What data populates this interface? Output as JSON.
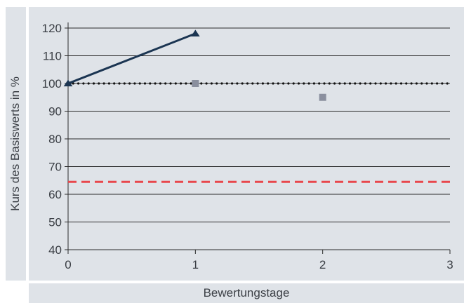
{
  "chart_data": {
    "type": "line",
    "xlabel": "Bewertungstage",
    "ylabel": "Kurs des Basiswerts in %",
    "xlim": [
      0,
      3
    ],
    "ylim": [
      40,
      120
    ],
    "x_ticks": [
      0,
      1,
      2,
      3
    ],
    "y_ticks": [
      40,
      50,
      60,
      70,
      80,
      90,
      100,
      110,
      120
    ],
    "grid": "horizontal",
    "series": [
      {
        "type": "line",
        "marker": "triangle",
        "color": "#1b3552",
        "points": [
          {
            "x": 0,
            "y": 100
          },
          {
            "x": 1,
            "y": 118
          }
        ]
      },
      {
        "type": "scatter",
        "marker": "square",
        "color": "#8a8f9e",
        "points": [
          {
            "x": 1,
            "y": 100
          },
          {
            "x": 2,
            "y": 95
          }
        ]
      }
    ],
    "reference_lines": [
      {
        "y": 100,
        "style": "dotted",
        "color": "#111111"
      },
      {
        "y": 64.5,
        "style": "dashed",
        "color": "#e8474c"
      }
    ]
  }
}
